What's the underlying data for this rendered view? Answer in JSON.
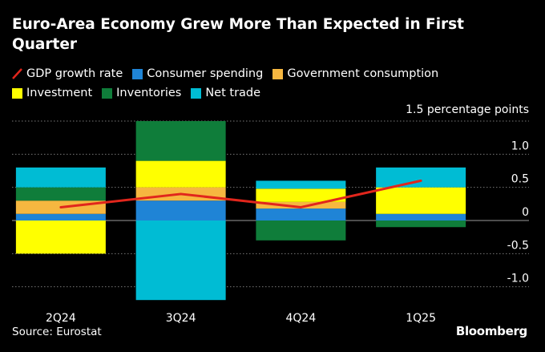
{
  "title": "Euro-Area Economy Grew More Than Expected in First Quarter",
  "source": "Source: Eurostat",
  "brand": "Bloomberg",
  "colors": {
    "gdp": "#e1261c",
    "consumer_spending": "#1f84d6",
    "government_consumption": "#f6b740",
    "investment": "#ffff00",
    "inventories": "#0f7d3a",
    "net_trade": "#00bcd4",
    "background": "#000000"
  },
  "legend": [
    {
      "key": "gdp",
      "label": "GDP growth rate",
      "kind": "line"
    },
    {
      "key": "consumer_spending",
      "label": "Consumer spending",
      "kind": "box"
    },
    {
      "key": "government_consumption",
      "label": "Government consumption",
      "kind": "box"
    },
    {
      "key": "investment",
      "label": "Investment",
      "kind": "box"
    },
    {
      "key": "inventories",
      "label": "Inventories",
      "kind": "box"
    },
    {
      "key": "net_trade",
      "label": "Net trade",
      "kind": "box"
    }
  ],
  "chart_data": {
    "type": "bar",
    "stacked": true,
    "unit_label": "1.5 percentage points",
    "ylim": [
      -1.2,
      1.5
    ],
    "yticks": [
      1.5,
      1.0,
      0.5,
      0,
      -0.5,
      -1.0
    ],
    "ytick_labels": [
      "",
      "1.0",
      "0.5",
      "0",
      "-0.5",
      "-1.0"
    ],
    "categories": [
      "2Q24",
      "3Q24",
      "4Q24",
      "1Q25"
    ],
    "series": [
      {
        "name": "Consumer spending",
        "key": "consumer_spending",
        "values": [
          0.1,
          0.3,
          0.18,
          0.1
        ]
      },
      {
        "name": "Government consumption",
        "key": "government_consumption",
        "values": [
          0.2,
          0.2,
          0.1,
          0.0
        ]
      },
      {
        "name": "Investment",
        "key": "investment",
        "values": [
          -0.5,
          0.4,
          0.2,
          0.4
        ]
      },
      {
        "name": "Inventories",
        "key": "inventories",
        "values": [
          0.2,
          0.6,
          -0.3,
          -0.1
        ]
      },
      {
        "name": "Net trade",
        "key": "net_trade",
        "values": [
          0.3,
          -1.2,
          0.12,
          0.3
        ]
      }
    ],
    "line": {
      "name": "GDP growth rate",
      "key": "gdp",
      "values": [
        0.2,
        0.4,
        0.2,
        0.6
      ]
    }
  }
}
